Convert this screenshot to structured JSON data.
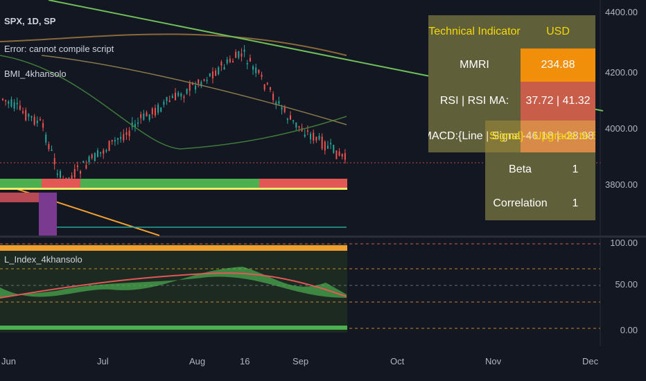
{
  "legend": {
    "symbol": "SPX, 1D, SP",
    "error": "Error: cannot compile script",
    "indicator": "BMI_4khansolo",
    "lower_indicator": "L_Index_4khansolo"
  },
  "price_axis": [
    "4400.00",
    "4200.00",
    "4000.00",
    "3800.00"
  ],
  "lower_axis": [
    "100.00",
    "50.00",
    "0.00"
  ],
  "time_axis": [
    "Jun",
    "Jul",
    "Aug",
    "16",
    "Sep",
    "Oct",
    "Nov",
    "Dec"
  ],
  "table": {
    "header_left": "Technical Indicator",
    "header_right": "USD",
    "mmri_label": "MMRI",
    "mmri_value": "234.88",
    "rsi_label": "RSI | RSI MA:",
    "rsi_value": "37.72 | 41.32",
    "macd_label": "MACD:{Line | Signal}",
    "macd_value": "-46.18 | -28.98",
    "overlay_text": "Signal} - Upgrade to Sig...",
    "beta_label": "Beta",
    "beta_value": "1",
    "corr_label": "Correlation",
    "corr_value": "1"
  },
  "colors": {
    "background": "#131722",
    "up": "#26a69a",
    "down": "#ef5350",
    "table_bg": "#5f5f3a",
    "header_text": "#f5d90a",
    "mmri_bg": "#f28f0a",
    "rsi_bg": "#c85d4a",
    "macd_bg": "#e07a4f",
    "bar_green": "#4caf50",
    "bar_red": "#e45757",
    "trend_green": "#6fbf5a",
    "trend_orange": "#f0a030"
  }
}
